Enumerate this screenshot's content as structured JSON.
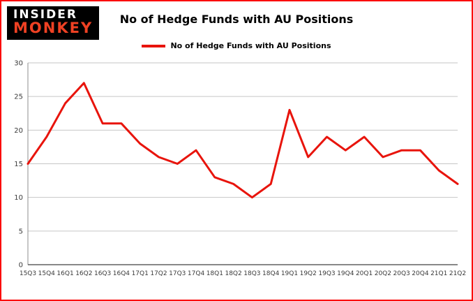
{
  "logo": {
    "line1": "INSIDER",
    "line2": "MONKEY"
  },
  "title": "No of Hedge Funds with AU Positions",
  "legend": {
    "label": "No of Hedge Funds with AU Positions"
  },
  "colors": {
    "line": "#e8140c",
    "frame_border": "#fb0a08",
    "logo_bg": "#000000",
    "logo_line1": "#ffffff",
    "logo_line2": "#ef4123",
    "grid": "#c6c6c6",
    "y_axis": "#8c8c8c",
    "x_axis": "#404040",
    "tick_text": "#3a3a3a"
  },
  "chart_data": {
    "type": "line",
    "title": "No of Hedge Funds with AU Positions",
    "categories": [
      "15Q3",
      "15Q4",
      "16Q1",
      "16Q2",
      "16Q3",
      "16Q4",
      "17Q1",
      "17Q2",
      "17Q3",
      "17Q4",
      "18Q1",
      "18Q2",
      "18Q3",
      "18Q4",
      "19Q1",
      "19Q2",
      "19Q3",
      "19Q4",
      "20Q1",
      "20Q2",
      "20Q3",
      "20Q4",
      "21Q1",
      "21Q2"
    ],
    "series": [
      {
        "name": "No of Hedge Funds with AU Positions",
        "color": "#e8140c",
        "values": [
          15,
          19,
          24,
          27,
          21,
          21,
          18,
          16,
          15,
          17,
          13,
          12,
          10,
          12,
          23,
          16,
          19,
          17,
          19,
          16,
          17,
          17,
          14,
          12
        ]
      }
    ],
    "xlabel": "",
    "ylabel": "",
    "ylim": [
      0,
      30
    ],
    "yticks": [
      0,
      5,
      10,
      15,
      20,
      25,
      30
    ],
    "grid": true,
    "legend_position": "top"
  }
}
